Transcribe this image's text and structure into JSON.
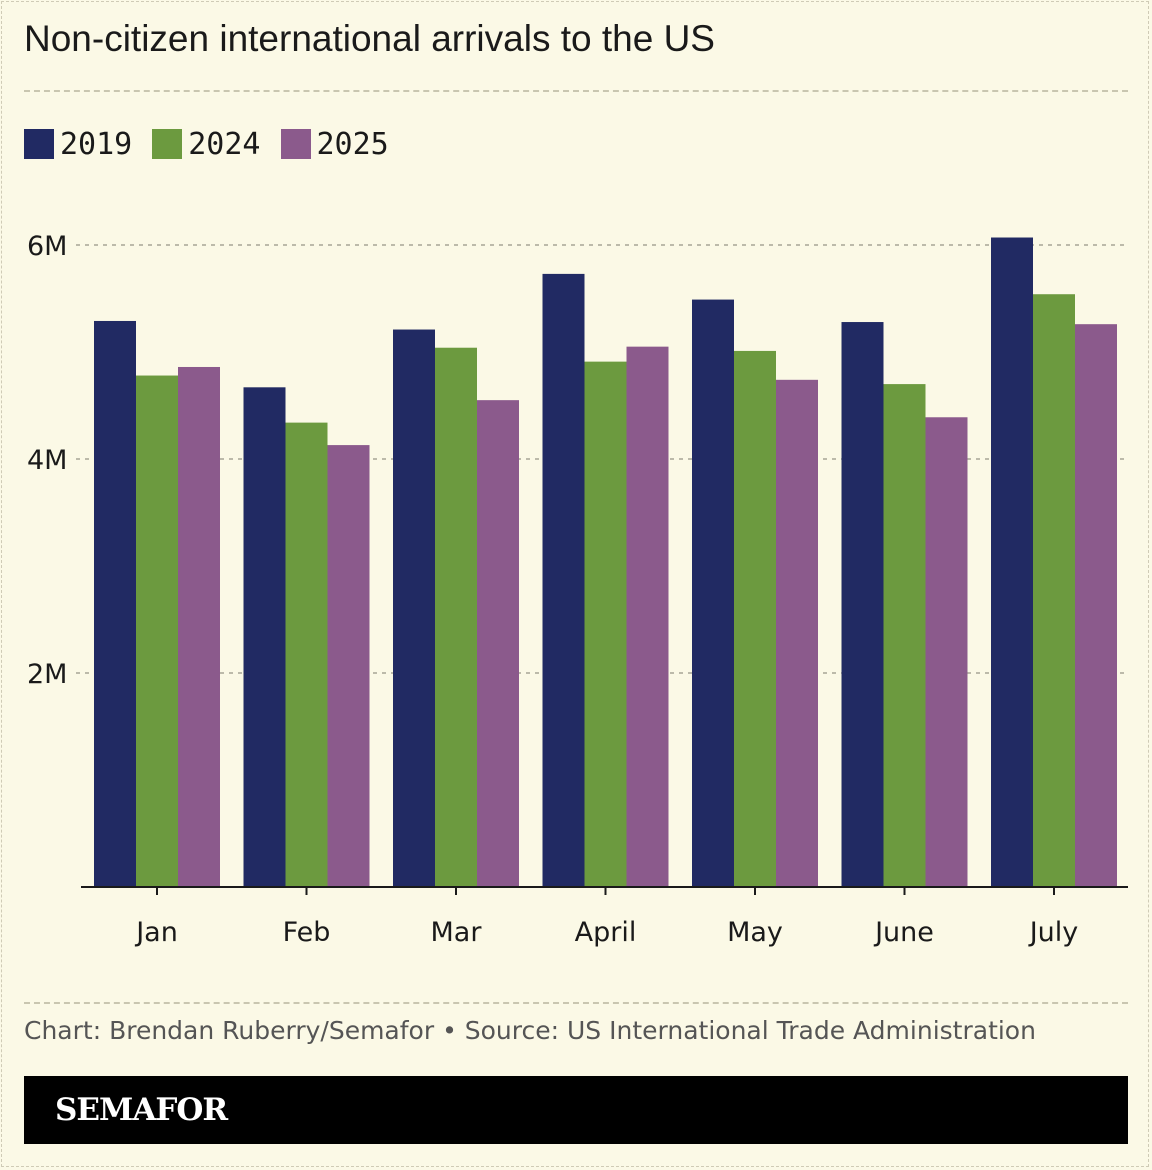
{
  "title": "Non-citizen international arrivals to the US",
  "legend": [
    {
      "label": "2019",
      "color": "#212a63"
    },
    {
      "label": "2024",
      "color": "#6c9a3f"
    },
    {
      "label": "2025",
      "color": "#8b5a8c"
    }
  ],
  "chart_data": {
    "type": "bar",
    "title": "Non-citizen international arrivals to the US",
    "xlabel": "",
    "ylabel": "",
    "categories": [
      "Jan",
      "Feb",
      "Mar",
      "April",
      "May",
      "June",
      "July"
    ],
    "series": [
      {
        "name": "2019",
        "color": "#212a63",
        "values": [
          5.29,
          4.67,
          5.21,
          5.73,
          5.49,
          5.28,
          6.07
        ]
      },
      {
        "name": "2024",
        "color": "#6c9a3f",
        "values": [
          4.78,
          4.34,
          5.04,
          4.91,
          5.01,
          4.7,
          5.54
        ]
      },
      {
        "name": "2025",
        "color": "#8b5a8c",
        "values": [
          4.86,
          4.13,
          4.55,
          5.05,
          4.74,
          4.39,
          5.26
        ]
      }
    ],
    "ylim": [
      0,
      6
    ],
    "yticks": [
      {
        "value": 2,
        "label": "2M"
      },
      {
        "value": 4,
        "label": "4M"
      },
      {
        "value": 6,
        "label": "6M"
      }
    ],
    "grid": true,
    "legend_position": "top-left"
  },
  "credit": "Chart: Brendan Ruberry/Semafor • Source: US International Trade Administration",
  "brand": "SEMAFOR"
}
